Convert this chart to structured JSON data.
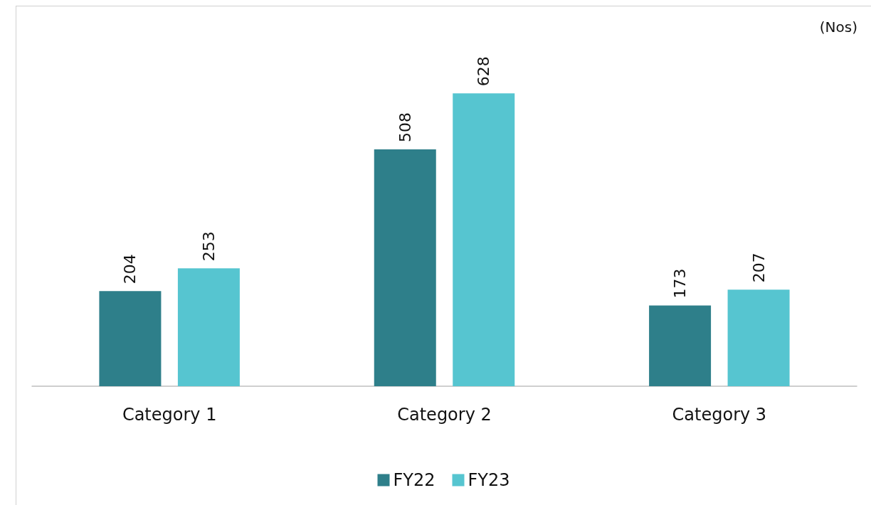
{
  "chart_data": {
    "type": "bar",
    "ylabel": "(Nos)",
    "categories": [
      "Category 1",
      "Category 2",
      "Category 3"
    ],
    "series": [
      {
        "name": "FY22",
        "color": "#2e7f8a",
        "values": [
          204,
          508,
          173
        ]
      },
      {
        "name": "FY23",
        "color": "#56c5d0",
        "values": [
          253,
          628,
          207
        ]
      }
    ],
    "data_labels": true,
    "legend": "bottom"
  }
}
